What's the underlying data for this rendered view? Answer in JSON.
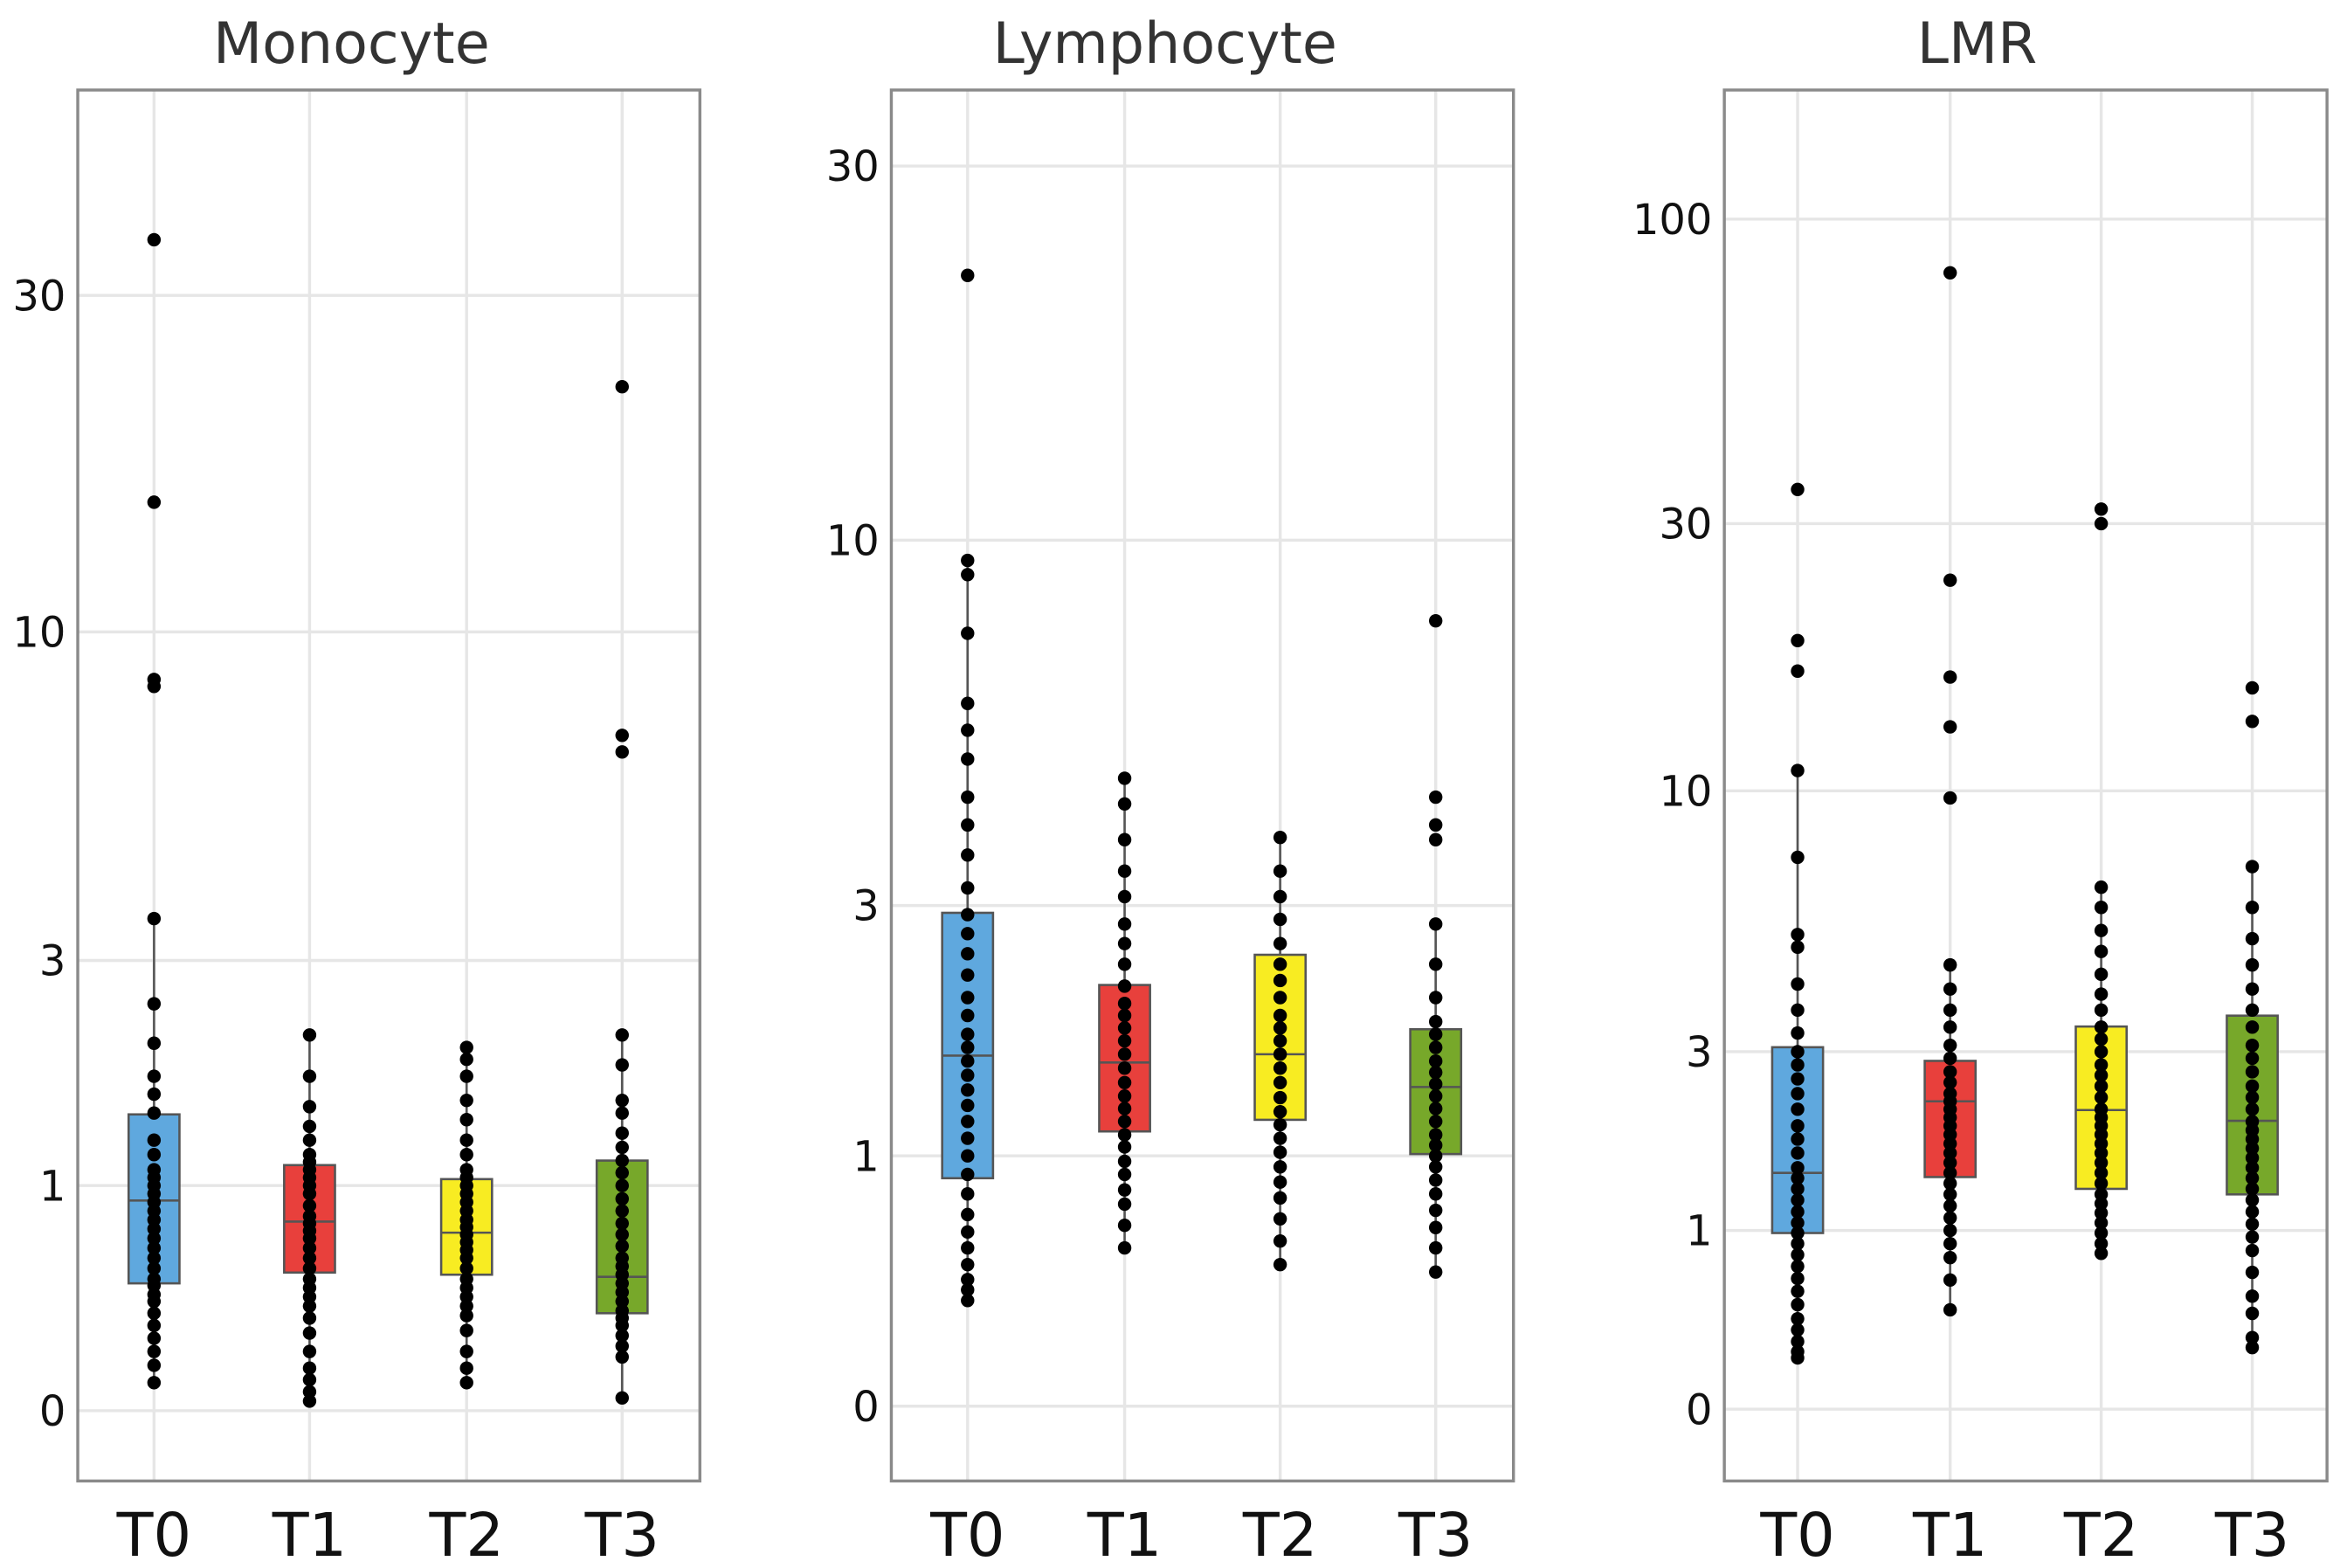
{
  "chart_data": [
    {
      "type": "box",
      "title": "Monocyte",
      "y_scale": "log10(y+1)",
      "yticks": [
        0,
        1,
        3,
        10,
        30
      ],
      "ytick_labels": [
        "0",
        "1",
        "3",
        "10",
        "30"
      ],
      "grid": true,
      "categories": [
        "T0",
        "T1",
        "T2",
        "T3"
      ],
      "colors": [
        "#5fa8de",
        "#e8403c",
        "#f8ec22",
        "#77a82a"
      ],
      "boxes": [
        {
          "q1": 0.48,
          "median": 0.91,
          "q3": 1.49,
          "whisker_low": 0.09,
          "whisker_high": 3.55
        },
        {
          "q1": 0.53,
          "median": 0.79,
          "q3": 1.13,
          "whisker_low": 0.03,
          "whisker_high": 2.18
        },
        {
          "q1": 0.52,
          "median": 0.73,
          "q3": 1.04,
          "whisker_low": 0.09,
          "whisker_high": 2.06
        },
        {
          "q1": 0.35,
          "median": 0.51,
          "q3": 1.16,
          "whisker_low": 0.04,
          "whisker_high": 2.18
        }
      ],
      "points": [
        [
          0.09,
          0.15,
          0.2,
          0.25,
          0.3,
          0.35,
          0.4,
          0.43,
          0.47,
          0.5,
          0.55,
          0.6,
          0.65,
          0.7,
          0.75,
          0.8,
          0.85,
          0.9,
          0.95,
          1.0,
          1.05,
          1.1,
          1.2,
          1.3,
          1.5,
          1.65,
          1.8,
          2.1,
          2.5,
          3.55,
          8.3,
          8.5,
          15.4,
          35.8
        ],
        [
          0.03,
          0.06,
          0.1,
          0.14,
          0.2,
          0.27,
          0.33,
          0.38,
          0.42,
          0.46,
          0.5,
          0.55,
          0.6,
          0.65,
          0.7,
          0.74,
          0.78,
          0.82,
          0.88,
          0.95,
          1.0,
          1.05,
          1.1,
          1.15,
          1.2,
          1.3,
          1.4,
          1.55,
          1.8,
          2.18
        ],
        [
          0.09,
          0.14,
          0.2,
          0.28,
          0.34,
          0.38,
          0.42,
          0.46,
          0.5,
          0.55,
          0.6,
          0.64,
          0.68,
          0.72,
          0.76,
          0.8,
          0.85,
          0.9,
          0.95,
          1.0,
          1.05,
          1.1,
          1.2,
          1.3,
          1.45,
          1.6,
          1.8,
          1.95,
          2.06
        ],
        [
          0.04,
          0.18,
          0.22,
          0.26,
          0.3,
          0.33,
          0.36,
          0.4,
          0.44,
          0.48,
          0.52,
          0.56,
          0.6,
          0.66,
          0.72,
          0.78,
          0.85,
          0.92,
          1.0,
          1.08,
          1.16,
          1.25,
          1.35,
          1.5,
          1.6,
          1.9,
          2.18,
          6.6,
          7.0,
          22.4
        ]
      ]
    },
    {
      "type": "box",
      "title": "Lymphocyte",
      "y_scale": "log10(y+1)",
      "yticks": [
        0,
        1,
        3,
        10,
        30
      ],
      "ytick_labels": [
        "0",
        "1",
        "3",
        "10",
        "30"
      ],
      "grid": true,
      "categories": [
        "T0",
        "T1",
        "T2",
        "T3"
      ],
      "colors": [
        "#5fa8de",
        "#e8403c",
        "#f8ec22",
        "#77a82a"
      ],
      "boxes": [
        {
          "q1": 0.88,
          "median": 1.64,
          "q3": 2.92,
          "whisker_low": 0.34,
          "whisker_high": 9.4
        },
        {
          "q1": 1.14,
          "median": 1.59,
          "q3": 2.21,
          "whisker_low": 0.55,
          "whisker_high": 4.69
        },
        {
          "q1": 1.21,
          "median": 1.65,
          "q3": 2.49,
          "whisker_low": 0.48,
          "whisker_high": 3.83
        },
        {
          "q1": 1.01,
          "median": 1.42,
          "q3": 1.84,
          "whisker_low": 0.45,
          "whisker_high": 2.8
        }
      ],
      "points": [
        [
          0.34,
          0.38,
          0.42,
          0.48,
          0.55,
          0.62,
          0.7,
          0.8,
          0.9,
          1.0,
          1.1,
          1.2,
          1.3,
          1.4,
          1.5,
          1.6,
          1.7,
          1.8,
          1.95,
          2.1,
          2.3,
          2.5,
          2.7,
          2.9,
          3.2,
          3.6,
          4.0,
          4.4,
          5.0,
          5.5,
          6.0,
          7.5,
          9.0,
          9.4,
          21.9
        ],
        [
          0.55,
          0.65,
          0.75,
          0.82,
          0.9,
          0.97,
          1.05,
          1.12,
          1.2,
          1.28,
          1.36,
          1.45,
          1.55,
          1.65,
          1.75,
          1.85,
          1.95,
          2.05,
          2.2,
          2.4,
          2.6,
          2.8,
          3.1,
          3.4,
          3.8,
          4.3,
          4.69
        ],
        [
          0.48,
          0.58,
          0.68,
          0.78,
          0.86,
          0.94,
          1.02,
          1.1,
          1.18,
          1.26,
          1.35,
          1.45,
          1.55,
          1.65,
          1.75,
          1.85,
          1.95,
          2.1,
          2.25,
          2.4,
          2.6,
          2.85,
          3.1,
          3.4,
          3.83
        ],
        [
          0.45,
          0.55,
          0.64,
          0.72,
          0.8,
          0.87,
          0.94,
          1.0,
          1.06,
          1.12,
          1.2,
          1.28,
          1.36,
          1.44,
          1.52,
          1.6,
          1.7,
          1.8,
          1.9,
          2.1,
          2.4,
          2.8,
          3.8,
          4.0,
          4.4,
          7.8
        ]
      ]
    },
    {
      "type": "box",
      "title": "LMR",
      "y_scale": "log10(y+1)",
      "yticks": [
        0,
        1,
        3,
        10,
        30,
        100
      ],
      "ytick_labels": [
        "0",
        "1",
        "3",
        "10",
        "30",
        "100"
      ],
      "grid": true,
      "categories": [
        "T0",
        "T1",
        "T2",
        "T3"
      ],
      "colors": [
        "#5fa8de",
        "#e8403c",
        "#f8ec22",
        "#77a82a"
      ],
      "boxes": [
        {
          "q1": 0.98,
          "median": 1.5,
          "q3": 3.07,
          "whisker_low": 0.22,
          "whisker_high": 10.9
        },
        {
          "q1": 1.46,
          "median": 2.3,
          "q3": 2.86,
          "whisker_low": 0.47,
          "whisker_high": 4.6
        },
        {
          "q1": 1.35,
          "median": 2.19,
          "q3": 3.41,
          "whisker_low": 0.83,
          "whisker_high": 6.57
        },
        {
          "q1": 1.3,
          "median": 2.06,
          "q3": 3.6,
          "whisker_low": 0.27,
          "whisker_high": 7.2
        }
      ],
      "points": [
        [
          0.22,
          0.25,
          0.3,
          0.36,
          0.42,
          0.5,
          0.58,
          0.66,
          0.74,
          0.82,
          0.9,
          0.98,
          1.06,
          1.15,
          1.25,
          1.35,
          1.45,
          1.55,
          1.7,
          1.85,
          2.0,
          2.2,
          2.4,
          2.6,
          2.8,
          3.0,
          3.3,
          3.7,
          4.2,
          5.0,
          5.3,
          7.5,
          10.9,
          16.5,
          18.7,
          34.4
        ],
        [
          0.47,
          0.65,
          0.8,
          0.9,
          1.0,
          1.1,
          1.2,
          1.3,
          1.4,
          1.5,
          1.6,
          1.7,
          1.8,
          1.9,
          2.0,
          2.1,
          2.2,
          2.3,
          2.4,
          2.55,
          2.7,
          2.9,
          3.1,
          3.4,
          3.7,
          4.1,
          4.6,
          9.7,
          13.1,
          16.1,
          23.9,
          81
        ],
        [
          0.83,
          0.9,
          0.98,
          1.06,
          1.14,
          1.22,
          1.3,
          1.4,
          1.5,
          1.6,
          1.7,
          1.8,
          1.9,
          2.0,
          2.1,
          2.2,
          2.35,
          2.5,
          2.65,
          2.8,
          3.0,
          3.2,
          3.4,
          3.7,
          4.0,
          4.4,
          4.9,
          5.4,
          6.0,
          6.57,
          30,
          31.8
        ],
        [
          0.27,
          0.32,
          0.45,
          0.55,
          0.7,
          0.85,
          0.95,
          1.05,
          1.15,
          1.25,
          1.35,
          1.45,
          1.55,
          1.65,
          1.75,
          1.85,
          1.95,
          2.05,
          2.2,
          2.35,
          2.5,
          2.7,
          2.9,
          3.1,
          3.4,
          3.7,
          4.1,
          4.6,
          5.2,
          6.0,
          7.2,
          13.4,
          15.4
        ]
      ]
    }
  ]
}
